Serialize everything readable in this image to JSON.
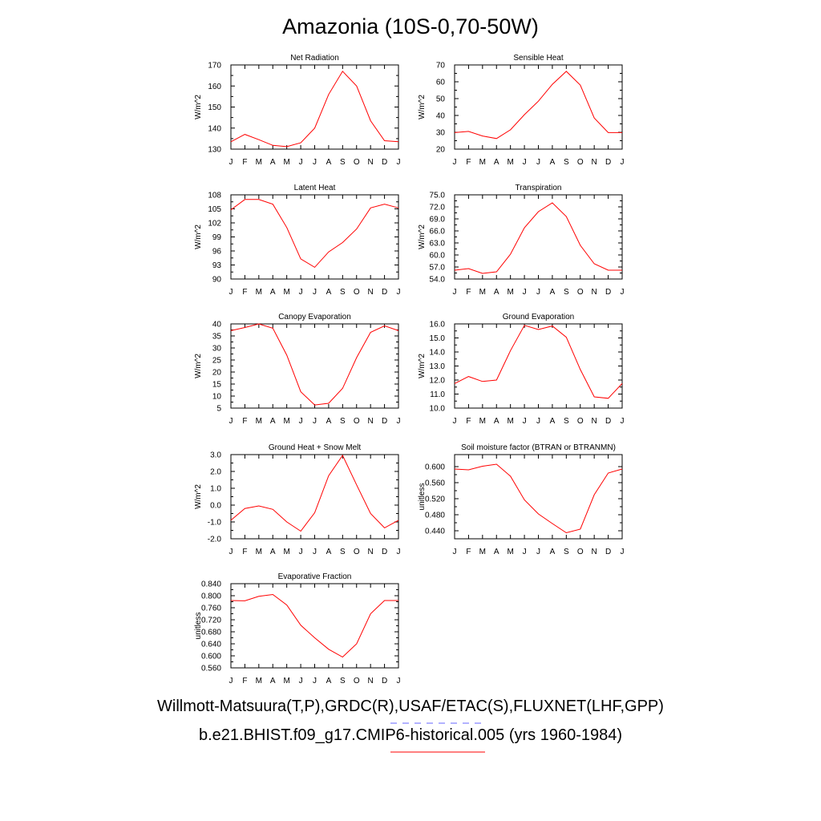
{
  "title": "Amazonia (10S-0,70-50W)",
  "month_labels": [
    "J",
    "F",
    "M",
    "A",
    "M",
    "J",
    "J",
    "A",
    "S",
    "O",
    "N",
    "D",
    "J"
  ],
  "legend": {
    "obs_label": "Willmott-Matsuura(T,P),GRDC(R),USAF/ETAC(S),FLUXNET(LHF,GPP)",
    "obs_color": "#6666ff",
    "model_label": "b.e21.BHIST.f09_g17.CMIP6-historical.005 (yrs 1960-1984)",
    "model_color": "#ff0000"
  },
  "chart_data": [
    {
      "type": "line",
      "title": "Net Radiation",
      "ylabel": "W/m^2",
      "ylim": [
        130,
        170
      ],
      "yticks": [
        "130",
        "140",
        "150",
        "160",
        "170"
      ],
      "x": [
        "J",
        "F",
        "M",
        "A",
        "M",
        "J",
        "J",
        "A",
        "S",
        "O",
        "N",
        "D",
        "J"
      ],
      "series": [
        {
          "values": [
            133.5,
            137,
            134.5,
            131.8,
            131.2,
            133,
            140,
            156,
            167,
            160,
            143.5,
            134,
            133.5
          ],
          "color": "#ff0000"
        }
      ]
    },
    {
      "type": "line",
      "title": "Sensible Heat",
      "ylabel": "W/m^2",
      "ylim": [
        20,
        70
      ],
      "yticks": [
        "20",
        "30",
        "40",
        "50",
        "60",
        "70"
      ],
      "x": [
        "J",
        "F",
        "M",
        "A",
        "M",
        "J",
        "J",
        "A",
        "S",
        "O",
        "N",
        "D",
        "J"
      ],
      "series": [
        {
          "values": [
            29.8,
            30.5,
            27.8,
            26.3,
            31.5,
            40.5,
            48.5,
            58.5,
            66.2,
            58,
            38.5,
            29.8,
            29.8
          ],
          "color": "#ff0000"
        }
      ]
    },
    {
      "type": "line",
      "title": "Latent Heat",
      "ylabel": "W/m^2",
      "ylim": [
        90,
        108
      ],
      "yticks": [
        "90",
        "93",
        "96",
        "99",
        "102",
        "105",
        "108"
      ],
      "x": [
        "J",
        "F",
        "M",
        "A",
        "M",
        "J",
        "J",
        "A",
        "S",
        "O",
        "N",
        "D",
        "J"
      ],
      "series": [
        {
          "values": [
            104.8,
            107,
            107,
            106,
            101,
            94.3,
            92.5,
            95.8,
            97.8,
            100.7,
            105.2,
            106,
            105.2
          ],
          "color": "#ff0000"
        }
      ]
    },
    {
      "type": "line",
      "title": "Transpiration",
      "ylabel": "W/m^2",
      "ylim": [
        54,
        75
      ],
      "yticks": [
        "54.0",
        "57.0",
        "60.0",
        "63.0",
        "66.0",
        "69.0",
        "72.0",
        "75.0"
      ],
      "x": [
        "J",
        "F",
        "M",
        "A",
        "M",
        "J",
        "J",
        "A",
        "S",
        "O",
        "N",
        "D",
        "J"
      ],
      "series": [
        {
          "values": [
            56.2,
            56.6,
            55.4,
            55.8,
            60.2,
            66.8,
            70.8,
            73,
            69.6,
            62.4,
            57.8,
            56.2,
            56.2
          ],
          "color": "#ff0000"
        }
      ]
    },
    {
      "type": "line",
      "title": "Canopy Evaporation",
      "ylabel": "W/m^2",
      "ylim": [
        5,
        40
      ],
      "yticks": [
        "5",
        "10",
        "15",
        "20",
        "25",
        "30",
        "35",
        "40"
      ],
      "x": [
        "J",
        "F",
        "M",
        "A",
        "M",
        "J",
        "J",
        "A",
        "S",
        "O",
        "N",
        "D",
        "J"
      ],
      "series": [
        {
          "values": [
            37.2,
            38.5,
            40,
            38.2,
            27,
            11.8,
            6.3,
            7,
            13.2,
            26,
            36.5,
            39.2,
            37.2
          ],
          "color": "#ff0000"
        }
      ]
    },
    {
      "type": "line",
      "title": "Ground Evaporation",
      "ylabel": "W/m^2",
      "ylim": [
        10,
        16
      ],
      "yticks": [
        "10.0",
        "11.0",
        "12.0",
        "13.0",
        "14.0",
        "15.0",
        "16.0"
      ],
      "x": [
        "J",
        "F",
        "M",
        "A",
        "M",
        "J",
        "J",
        "A",
        "S",
        "O",
        "N",
        "D",
        "J"
      ],
      "series": [
        {
          "values": [
            11.75,
            12.25,
            11.9,
            12.0,
            14.1,
            15.9,
            15.6,
            15.85,
            15.05,
            12.75,
            10.8,
            10.7,
            11.75
          ],
          "color": "#ff0000"
        }
      ]
    },
    {
      "type": "line",
      "title": "Ground Heat + Snow Melt",
      "ylabel": "W/m^2",
      "ylim": [
        -2,
        3
      ],
      "yticks": [
        "-2.0",
        "-1.0",
        "0.0",
        "1.0",
        "2.0",
        "3.0"
      ],
      "x": [
        "J",
        "F",
        "M",
        "A",
        "M",
        "J",
        "J",
        "A",
        "S",
        "O",
        "N",
        "D",
        "J"
      ],
      "series": [
        {
          "values": [
            -0.9,
            -0.2,
            -0.05,
            -0.25,
            -1.0,
            -1.55,
            -0.45,
            1.75,
            2.95,
            1.2,
            -0.5,
            -1.35,
            -0.9
          ],
          "color": "#ff0000"
        }
      ]
    },
    {
      "type": "line",
      "title": "Soil moisture factor (BTRAN or BTRANMN)",
      "ylabel": "unitless",
      "ylim": [
        0.42,
        0.63
      ],
      "yticks": [
        "0.440",
        "0.480",
        "0.520",
        "0.560",
        "0.600"
      ],
      "ytick_values": [
        0.44,
        0.48,
        0.52,
        0.56,
        0.6
      ],
      "x": [
        "J",
        "F",
        "M",
        "A",
        "M",
        "J",
        "J",
        "A",
        "S",
        "O",
        "N",
        "D",
        "J"
      ],
      "series": [
        {
          "values": [
            0.594,
            0.592,
            0.601,
            0.606,
            0.576,
            0.517,
            0.482,
            0.458,
            0.435,
            0.444,
            0.53,
            0.584,
            0.594
          ],
          "color": "#ff0000"
        }
      ]
    },
    {
      "type": "line",
      "title": "Evaporative Fraction",
      "ylabel": "unitless",
      "ylim": [
        0.56,
        0.84
      ],
      "yticks": [
        "0.560",
        "0.600",
        "0.640",
        "0.680",
        "0.720",
        "0.760",
        "0.800",
        "0.840"
      ],
      "x": [
        "J",
        "F",
        "M",
        "A",
        "M",
        "J",
        "J",
        "A",
        "S",
        "O",
        "N",
        "D",
        "J"
      ],
      "series": [
        {
          "values": [
            0.784,
            0.783,
            0.798,
            0.804,
            0.769,
            0.702,
            0.66,
            0.622,
            0.596,
            0.64,
            0.74,
            0.784,
            0.784
          ],
          "color": "#ff0000"
        }
      ]
    }
  ]
}
